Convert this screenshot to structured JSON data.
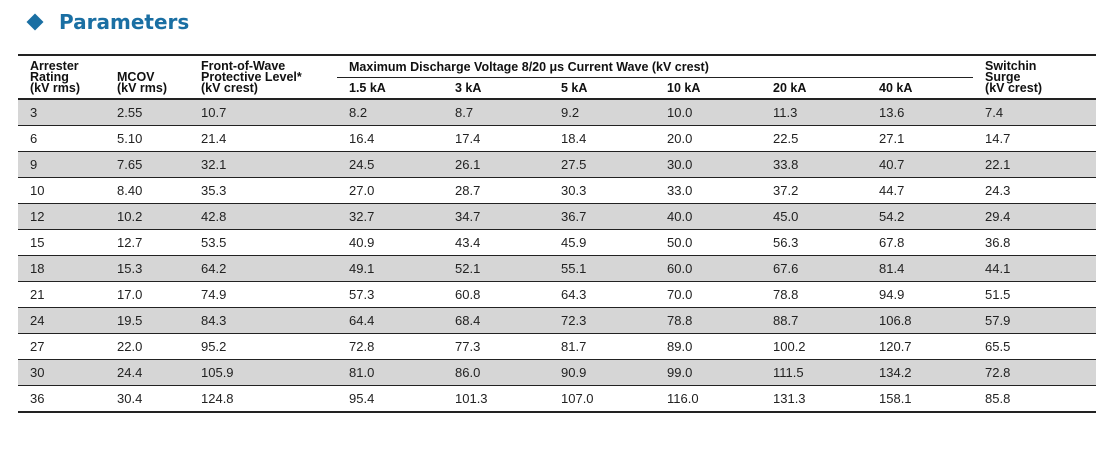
{
  "section": {
    "title": "Parameters"
  },
  "table": {
    "group_header": "Maximum Discharge Voltage 8/20 μs Current Wave (kV crest)",
    "headers": {
      "rating": [
        "Arrester",
        "Rating",
        "(kV rms)"
      ],
      "mcov": [
        "MCOV",
        "(kV rms)"
      ],
      "front": [
        "Front-of-Wave",
        "Protective Level*",
        "(kV crest)"
      ],
      "sub": [
        "1.5 kA",
        "3 kA",
        "5 kA",
        "10 kA",
        "20 kA",
        "40 kA"
      ],
      "switching": [
        "Switchin",
        "Surge",
        "(kV crest)"
      ]
    },
    "rows": [
      [
        "3",
        "2.55",
        "10.7",
        "8.2",
        "8.7",
        "9.2",
        "10.0",
        "11.3",
        "13.6",
        "7.4"
      ],
      [
        "6",
        "5.10",
        "21.4",
        "16.4",
        "17.4",
        "18.4",
        "20.0",
        "22.5",
        "27.1",
        "14.7"
      ],
      [
        "9",
        "7.65",
        "32.1",
        "24.5",
        "26.1",
        "27.5",
        "30.0",
        "33.8",
        "40.7",
        "22.1"
      ],
      [
        "10",
        "8.40",
        "35.3",
        "27.0",
        "28.7",
        "30.3",
        "33.0",
        "37.2",
        "44.7",
        "24.3"
      ],
      [
        "12",
        "10.2",
        "42.8",
        "32.7",
        "34.7",
        "36.7",
        "40.0",
        "45.0",
        "54.2",
        "29.4"
      ],
      [
        "15",
        "12.7",
        "53.5",
        "40.9",
        "43.4",
        "45.9",
        "50.0",
        "56.3",
        "67.8",
        "36.8"
      ],
      [
        "18",
        "15.3",
        "64.2",
        "49.1",
        "52.1",
        "55.1",
        "60.0",
        "67.6",
        "81.4",
        "44.1"
      ],
      [
        "21",
        "17.0",
        "74.9",
        "57.3",
        "60.8",
        "64.3",
        "70.0",
        "78.8",
        "94.9",
        "51.5"
      ],
      [
        "24",
        "19.5",
        "84.3",
        "64.4",
        "68.4",
        "72.3",
        "78.8",
        "88.7",
        "106.8",
        "57.9"
      ],
      [
        "27",
        "22.0",
        "95.2",
        "72.8",
        "77.3",
        "81.7",
        "89.0",
        "100.2",
        "120.7",
        "65.5"
      ],
      [
        "30",
        "24.4",
        "105.9",
        "81.0",
        "86.0",
        "90.9",
        "99.0",
        "111.5",
        "134.2",
        "72.8"
      ],
      [
        "36",
        "30.4",
        "124.8",
        "95.4",
        "101.3",
        "107.0",
        "116.0",
        "131.3",
        "158.1",
        "85.8"
      ]
    ]
  }
}
